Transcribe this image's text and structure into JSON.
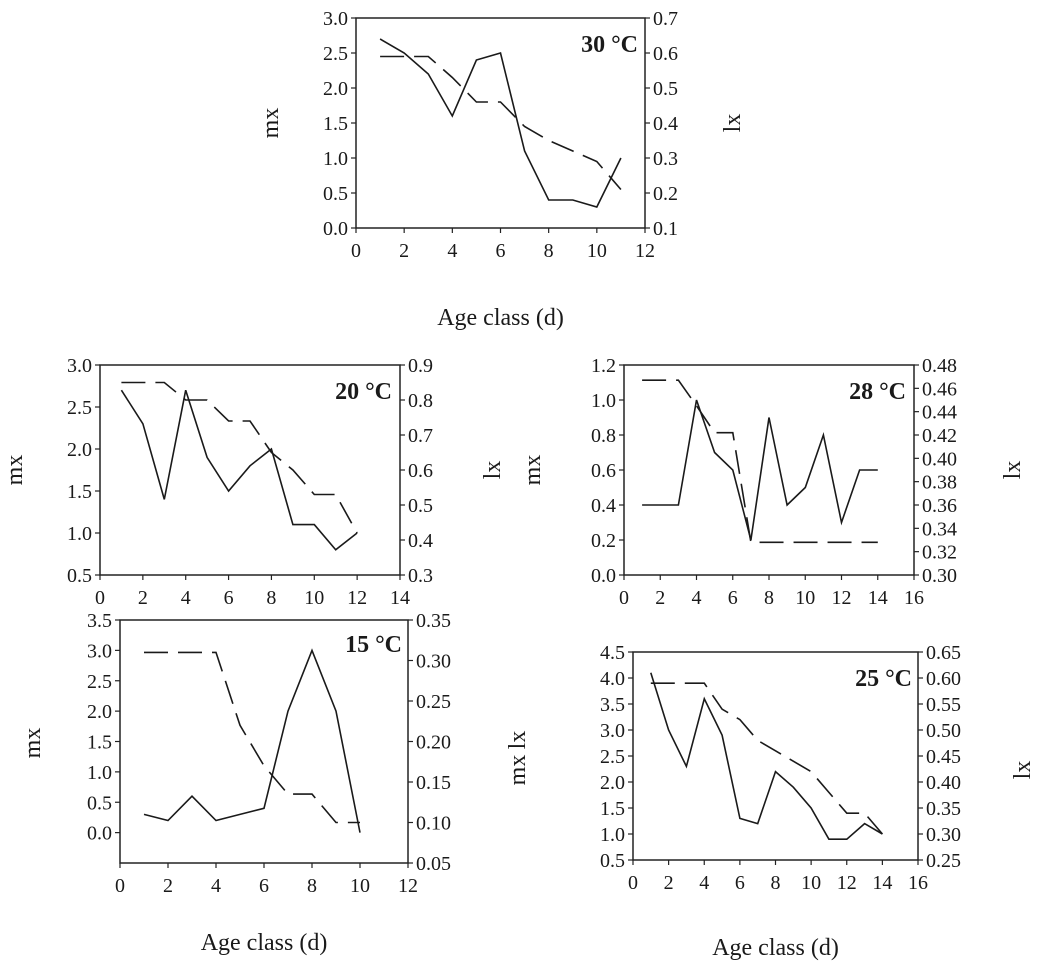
{
  "chart_data": [
    {
      "type": "line",
      "title": "30 °C",
      "xlabel": "Age class (d)",
      "ylabel": "mx",
      "y2label": "lx",
      "xlim": [
        0,
        12
      ],
      "xticks": [
        0,
        2,
        4,
        6,
        8,
        10,
        12
      ],
      "ylim": [
        0,
        3
      ],
      "yticks": [
        0.0,
        0.5,
        1.0,
        1.5,
        2.0,
        2.5,
        3.0
      ],
      "ydec": 1,
      "y2lim": [
        0.1,
        0.7
      ],
      "y2ticks": [
        0.1,
        0.2,
        0.3,
        0.4,
        0.5,
        0.6,
        0.7
      ],
      "y2dec": 1,
      "grid": false,
      "series": [
        {
          "axis": "left",
          "style": "solid",
          "x": [
            1,
            2,
            3,
            4,
            5,
            6,
            7,
            8,
            9,
            10,
            11
          ],
          "values": [
            2.7,
            2.5,
            2.2,
            1.6,
            2.4,
            2.5,
            1.1,
            0.4,
            0.4,
            0.3,
            1.0
          ]
        },
        {
          "axis": "right",
          "style": "dashed",
          "x": [
            1,
            2,
            3,
            4,
            5,
            6,
            7,
            8,
            9,
            10,
            11
          ],
          "values": [
            0.59,
            0.59,
            0.59,
            0.53,
            0.46,
            0.46,
            0.39,
            0.35,
            0.32,
            0.29,
            0.21
          ]
        }
      ]
    },
    {
      "type": "line",
      "title": "20 °C",
      "xlabel": "",
      "ylabel": "mx",
      "y2label": "lx",
      "xlim": [
        0,
        14
      ],
      "xticks": [
        0,
        2,
        4,
        6,
        8,
        10,
        12,
        14
      ],
      "ylim": [
        0.5,
        3.0
      ],
      "yticks": [
        0.5,
        1.0,
        1.5,
        2.0,
        2.5,
        3.0
      ],
      "ydec": 1,
      "y2lim": [
        0.3,
        0.9
      ],
      "y2ticks": [
        0.3,
        0.4,
        0.5,
        0.6,
        0.7,
        0.8,
        0.9
      ],
      "y2dec": 1,
      "grid": false,
      "series": [
        {
          "axis": "left",
          "style": "solid",
          "x": [
            1,
            2,
            3,
            4,
            5,
            6,
            7,
            8,
            9,
            10,
            11,
            12
          ],
          "values": [
            2.7,
            2.3,
            1.4,
            2.7,
            1.9,
            1.5,
            1.8,
            2.0,
            1.1,
            1.1,
            0.8,
            1.0
          ]
        },
        {
          "axis": "right",
          "style": "dashed",
          "x": [
            1,
            2,
            3,
            4,
            5,
            6,
            7,
            8,
            9,
            10,
            11,
            12
          ],
          "values": [
            0.85,
            0.85,
            0.85,
            0.8,
            0.8,
            0.74,
            0.74,
            0.65,
            0.6,
            0.53,
            0.53,
            0.42
          ]
        }
      ]
    },
    {
      "type": "line",
      "title": "28 °C",
      "xlabel": "",
      "ylabel": "mx",
      "y2label": "lx",
      "xlim": [
        0,
        16
      ],
      "xticks": [
        0,
        2,
        4,
        6,
        8,
        10,
        12,
        14,
        16
      ],
      "ylim": [
        0.0,
        1.2
      ],
      "yticks": [
        0.0,
        0.2,
        0.4,
        0.6,
        0.8,
        1.0,
        1.2
      ],
      "ydec": 1,
      "y2lim": [
        0.3,
        0.48
      ],
      "y2ticks": [
        0.3,
        0.32,
        0.34,
        0.36,
        0.38,
        0.4,
        0.42,
        0.44,
        0.46,
        0.48
      ],
      "y2dec": 2,
      "grid": false,
      "series": [
        {
          "axis": "left",
          "style": "solid",
          "x": [
            1,
            2,
            3,
            4,
            5,
            6,
            7,
            8,
            9,
            10,
            11,
            12,
            13,
            14
          ],
          "values": [
            0.4,
            0.4,
            0.4,
            1.0,
            0.7,
            0.6,
            0.2,
            0.9,
            0.4,
            0.5,
            0.8,
            0.3,
            0.6,
            0.6
          ]
        },
        {
          "axis": "right",
          "style": "dashed",
          "x": [
            1,
            2,
            3,
            4,
            5,
            6,
            7,
            8,
            9,
            10,
            11,
            12,
            13,
            14
          ],
          "values": [
            0.467,
            0.467,
            0.467,
            0.445,
            0.422,
            0.422,
            0.328,
            0.328,
            0.328,
            0.328,
            0.328,
            0.328,
            0.328,
            0.328
          ]
        }
      ]
    },
    {
      "type": "line",
      "title": "15 °C",
      "xlabel": "Age class (d)",
      "ylabel": "mx",
      "y2label": "",
      "xlim": [
        0,
        12
      ],
      "xticks": [
        0,
        2,
        4,
        6,
        8,
        10,
        12
      ],
      "ylim": [
        -0.5,
        3.5
      ],
      "yticks": [
        0.0,
        0.5,
        1.0,
        1.5,
        2.0,
        2.5,
        3.0,
        3.5
      ],
      "ydec": 1,
      "y2lim": [
        0.05,
        0.35
      ],
      "y2ticks": [
        0.05,
        0.1,
        0.15,
        0.2,
        0.25,
        0.3,
        0.35
      ],
      "y2dec": 2,
      "grid": false,
      "series": [
        {
          "axis": "left",
          "style": "solid",
          "x": [
            1,
            2,
            3,
            4,
            5,
            6,
            7,
            8,
            9,
            10
          ],
          "values": [
            0.3,
            0.2,
            0.6,
            0.2,
            0.3,
            0.4,
            2.0,
            3.0,
            2.0,
            0.0
          ]
        },
        {
          "axis": "right",
          "style": "dashed",
          "x": [
            1,
            2,
            3,
            4,
            5,
            6,
            7,
            8,
            9,
            10
          ],
          "values": [
            0.31,
            0.31,
            0.31,
            0.31,
            0.22,
            0.17,
            0.135,
            0.135,
            0.1,
            0.1
          ]
        }
      ]
    },
    {
      "type": "line",
      "title": "25 °C",
      "xlabel": "Age class (d)",
      "ylabel": "mx",
      "ylabel_extra": "lx",
      "y2label": "lx",
      "xlim": [
        0,
        16
      ],
      "xticks": [
        0,
        2,
        4,
        6,
        8,
        10,
        12,
        14,
        16
      ],
      "ylim": [
        0.5,
        4.5
      ],
      "yticks": [
        0.5,
        1.0,
        1.5,
        2.0,
        2.5,
        3.0,
        3.5,
        4.0,
        4.5
      ],
      "ydec": 1,
      "y2lim": [
        0.25,
        0.65
      ],
      "y2ticks": [
        0.25,
        0.3,
        0.35,
        0.4,
        0.45,
        0.5,
        0.55,
        0.6,
        0.65
      ],
      "y2dec": 2,
      "grid": false,
      "series": [
        {
          "axis": "left",
          "style": "solid",
          "x": [
            1,
            2,
            3,
            4,
            5,
            6,
            7,
            8,
            9,
            10,
            11,
            12,
            13,
            14
          ],
          "values": [
            4.1,
            3.0,
            2.3,
            3.6,
            2.9,
            1.3,
            1.2,
            2.2,
            1.9,
            1.5,
            0.9,
            0.9,
            1.2,
            1.0
          ]
        },
        {
          "axis": "right",
          "style": "dashed",
          "x": [
            1,
            2,
            3,
            4,
            5,
            6,
            7,
            8,
            9,
            10,
            11,
            12,
            13,
            14
          ],
          "values": [
            0.59,
            0.59,
            0.59,
            0.59,
            0.54,
            0.52,
            0.48,
            0.46,
            0.44,
            0.42,
            0.38,
            0.34,
            0.34,
            0.3
          ]
        }
      ]
    }
  ]
}
